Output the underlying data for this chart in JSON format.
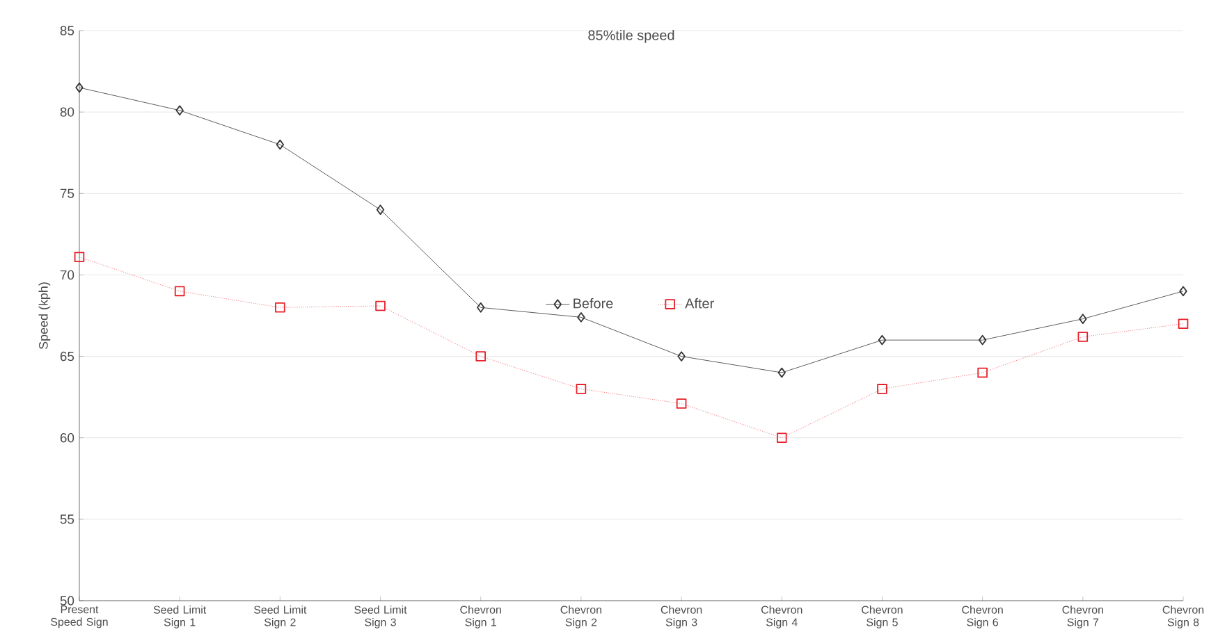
{
  "chart_data": {
    "type": "line",
    "title": "85%tile speed",
    "ylabel": "Speed (kph)",
    "categories": [
      "Present Speed Sign",
      "Seed Limit Sign 1",
      "Seed Limit Sign 2",
      "Seed Limit Sign 3",
      "Chevron Sign 1",
      "Chevron Sign 2",
      "Chevron Sign 3",
      "Chevron Sign 4",
      "Chevron Sign 5",
      "Chevron Sign 6",
      "Chevron Sign 7",
      "Chevron Sign 8"
    ],
    "series": [
      {
        "name": "Before",
        "color": "#333333",
        "marker": "diamond",
        "line_style": "solid",
        "values": [
          81.5,
          80.1,
          78,
          74,
          68,
          67.4,
          65,
          64,
          66,
          66,
          67.3,
          69
        ]
      },
      {
        "name": "After",
        "color": "#e8202a",
        "marker": "square",
        "line_style": "dotted",
        "values": [
          71.1,
          69,
          68,
          68.1,
          65,
          63,
          62.1,
          60,
          63,
          64,
          66.2,
          67
        ]
      }
    ],
    "ylim": [
      50,
      85
    ],
    "yticks": [
      50,
      55,
      60,
      65,
      70,
      75,
      80,
      85
    ],
    "grid": "y",
    "legend": "center"
  }
}
